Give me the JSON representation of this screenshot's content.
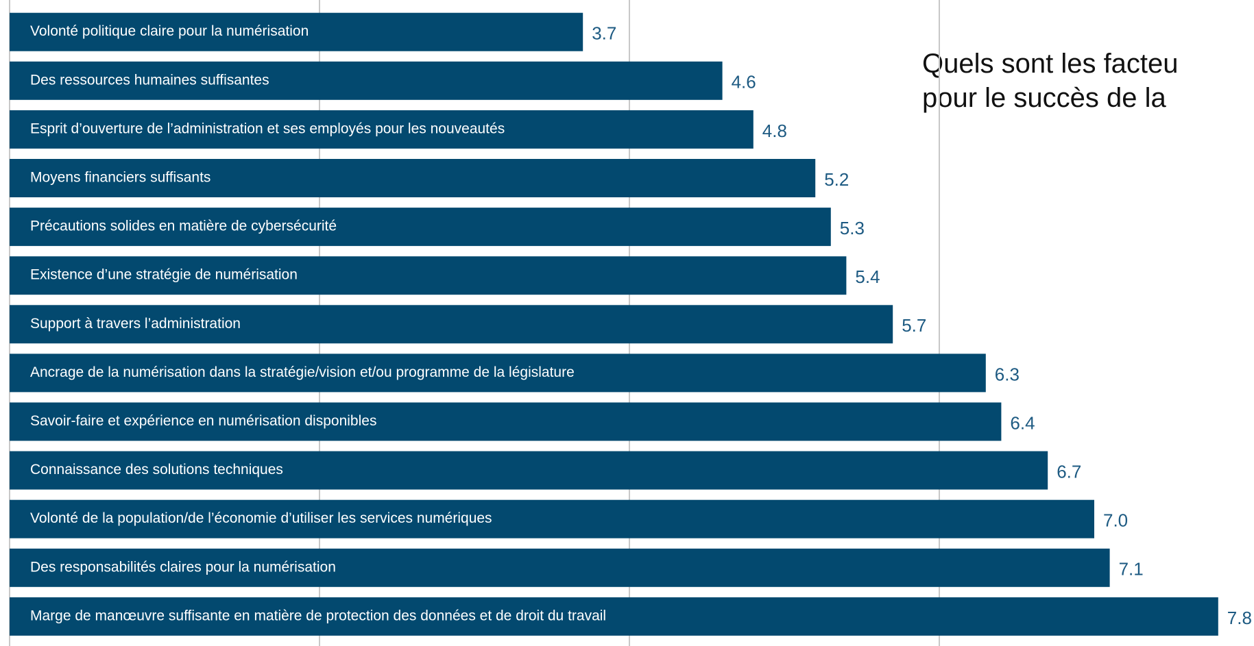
{
  "chart_data": {
    "type": "barh",
    "title": [
      "Quels sont les facteu",
      "pour le succès de la"
    ],
    "categories": [
      "Volonté politique claire pour la numérisation",
      "Des ressources humaines suffisantes",
      "Esprit d’ouverture de l’administration et ses employés pour les nouveautés",
      "Moyens financiers suffisants",
      "Précautions solides en matière de cybersécurité",
      "Existence d’une stratégie de numérisation",
      "Support à travers l’administration",
      "Ancrage de la numérisation dans la stratégie/vision et/ou programme de la législature",
      "Savoir-faire et expérience en numérisation disponibles",
      "Connaissance des solutions techniques",
      "Volonté de la population/de l’économie d’utiliser les services numériques",
      "Des responsabilités claires pour la numérisation",
      "Marge de manœuvre suffisante en matière de protection des données et de droit du travail"
    ],
    "values": [
      3.7,
      4.6,
      4.8,
      5.2,
      5.3,
      5.4,
      5.7,
      6.3,
      6.4,
      6.7,
      7.0,
      7.1,
      7.8
    ],
    "value_labels": [
      "3.7",
      "4.6",
      "4.8",
      "5.2",
      "5.3",
      "5.4",
      "5.7",
      "6.3",
      "6.4",
      "6.7",
      "7.0",
      "7.1",
      "7.8"
    ],
    "color": "#03496f",
    "xlim": [
      0,
      8
    ],
    "xticks": [
      0,
      2,
      4,
      6
    ],
    "grid": true
  }
}
